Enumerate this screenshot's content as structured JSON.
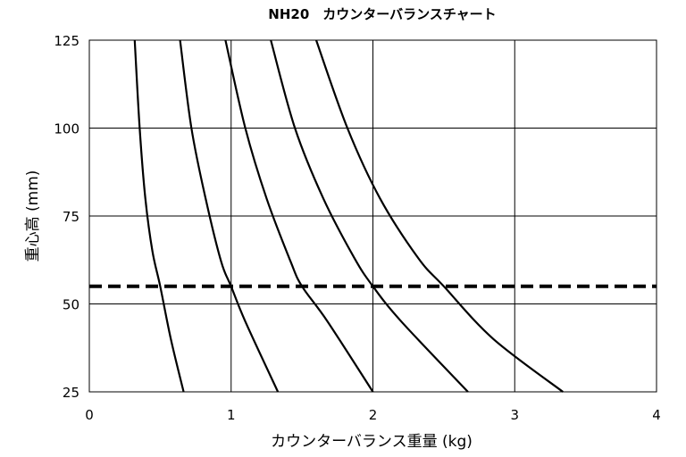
{
  "chart_data": {
    "type": "line",
    "title": "NH20　カウンターバランスチャート",
    "xlabel": "カウンターバランス重量 (kg)",
    "ylabel": "重心高 (mm)",
    "xlim": [
      0,
      4
    ],
    "ylim": [
      25,
      125
    ],
    "xticks": [
      0,
      1,
      2,
      3,
      4
    ],
    "yticks": [
      25,
      50,
      75,
      100,
      125
    ],
    "grid": true,
    "legend": "none",
    "reference_line": {
      "y": 55,
      "style": "dashed"
    },
    "series": [
      {
        "x": [
          0.32,
          0.355,
          0.395,
          0.445,
          0.5,
          0.575,
          0.665
        ],
        "y": [
          125,
          100,
          80,
          65,
          55,
          40,
          25
        ]
      },
      {
        "x": [
          0.64,
          0.72,
          0.82,
          0.93,
          1.0,
          1.1,
          1.33
        ],
        "y": [
          125,
          100,
          80,
          62,
          55,
          45,
          25
        ]
      },
      {
        "x": [
          0.96,
          1.1,
          1.25,
          1.42,
          1.5,
          1.68,
          2.0
        ],
        "y": [
          125,
          100,
          80,
          62,
          55,
          45,
          25
        ]
      },
      {
        "x": [
          1.28,
          1.45,
          1.65,
          1.87,
          2.0,
          2.2,
          2.67
        ],
        "y": [
          125,
          100,
          80,
          63,
          55,
          45,
          25
        ]
      },
      {
        "x": [
          1.6,
          1.82,
          2.05,
          2.32,
          2.5,
          2.85,
          3.34
        ],
        "y": [
          125,
          100,
          80,
          63,
          55,
          40,
          25
        ]
      }
    ]
  }
}
